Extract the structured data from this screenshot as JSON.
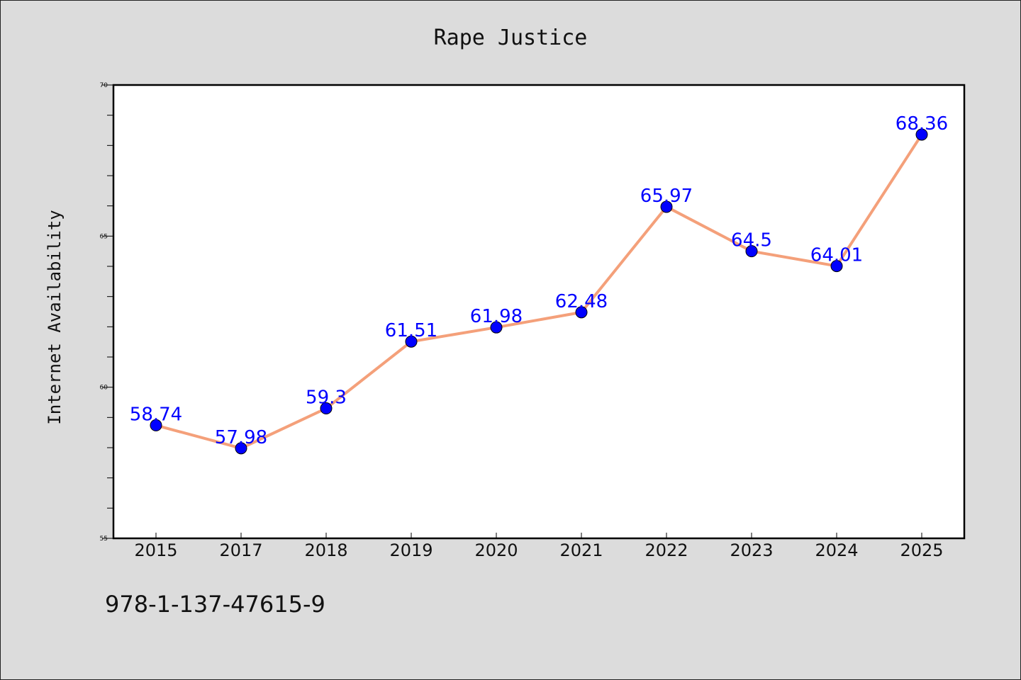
{
  "chart_data": {
    "type": "line",
    "title": "Rape Justice",
    "xlabel": "",
    "ylabel": "Internet Availability",
    "categories": [
      "2015",
      "2017",
      "2018",
      "2019",
      "2020",
      "2021",
      "2022",
      "2023",
      "2024",
      "2025"
    ],
    "series": [
      {
        "values": [
          58.74,
          57.98,
          59.3,
          61.51,
          61.98,
          62.48,
          65.97,
          64.5,
          64.01,
          68.36
        ]
      }
    ],
    "data_labels": [
      "58.74",
      "57.98",
      "59.3",
      "61.51",
      "61.98",
      "62.48",
      "65.97",
      "64.5",
      "64.01",
      "68.36"
    ],
    "ylim": [
      55,
      70
    ],
    "yticks": [
      "55",
      "60",
      "65",
      "70"
    ],
    "grid": false,
    "line_color": "#f4a07a",
    "marker_color": "#0000ff",
    "label_color": "#0000ff"
  },
  "footer": {
    "isbn": "978-1-137-47615-9"
  }
}
